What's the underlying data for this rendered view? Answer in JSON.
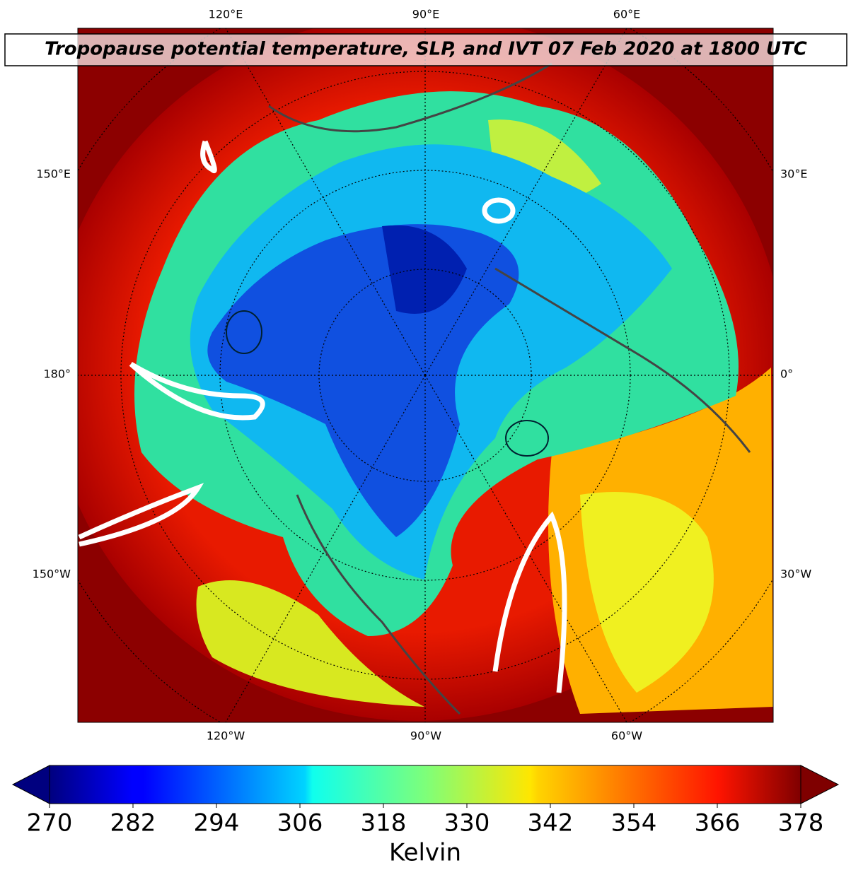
{
  "map": {
    "title": "Tropopause potential temperature, SLP, and IVT 07 Feb 2020 at 1800 UTC",
    "labels": {
      "top": [
        "120°E",
        "90°E",
        "60°E"
      ],
      "bottom": [
        "120°W",
        "90°W",
        "60°W"
      ],
      "left": [
        "150°E",
        "180°",
        "150°W"
      ],
      "right": [
        "30°E",
        "0°",
        "30°W"
      ]
    },
    "colorbar": {
      "label": "Kelvin",
      "colormap": "jet",
      "lim": [
        270,
        378
      ],
      "ticks": [
        270,
        282,
        294,
        306,
        318,
        330,
        342,
        354,
        366,
        378
      ]
    }
  }
}
